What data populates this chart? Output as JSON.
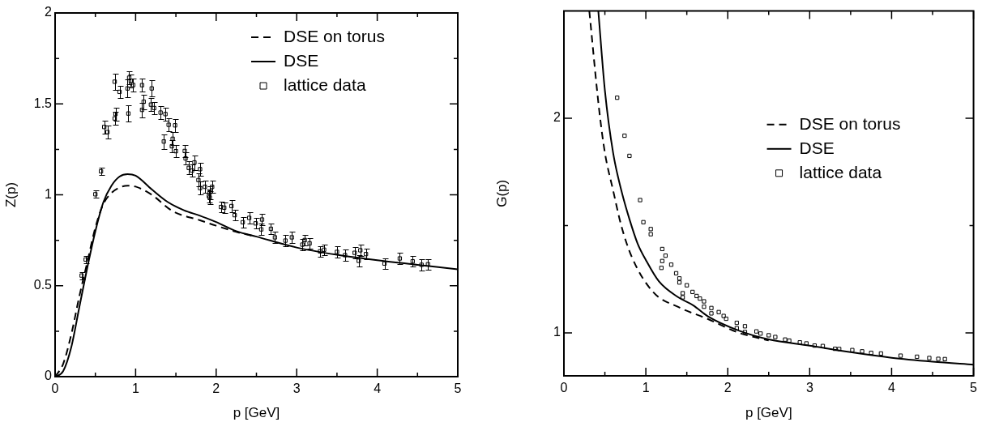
{
  "chart_data": [
    {
      "type": "line",
      "xlabel": "p [GeV]",
      "ylabel": "Z(p)",
      "xlim": [
        0,
        5
      ],
      "ylim": [
        0,
        2
      ],
      "xticks": [
        0,
        {
          "value": 0.5,
          "label": null
        },
        1,
        {
          "value": 1.5,
          "label": null
        },
        2,
        {
          "value": 2.5,
          "label": null
        },
        3,
        {
          "value": 3.5,
          "label": null
        },
        4,
        {
          "value": 4.5,
          "label": null
        },
        5
      ],
      "yticks": [
        0,
        {
          "value": 0.25,
          "label": null
        },
        0.5,
        {
          "value": 0.75,
          "label": null
        },
        1,
        {
          "value": 1.25,
          "label": null
        },
        1.5,
        {
          "value": 1.75,
          "label": null
        },
        2
      ],
      "legend": "top right",
      "grid": false,
      "series": [
        {
          "name": "DSE on torus",
          "color": "#000000",
          "line_style": "dashed",
          "marker": "none",
          "x": [
            0,
            0.1,
            0.2,
            0.3,
            0.4,
            0.5,
            0.6,
            0.7,
            0.8,
            0.9,
            1.0,
            1.2,
            1.46,
            1.8,
            2.0,
            2.3,
            2.5
          ],
          "values": [
            0,
            0.07,
            0.23,
            0.44,
            0.63,
            0.82,
            0.95,
            1.01,
            1.04,
            1.05,
            1.045,
            1.0,
            0.91,
            0.86,
            0.83,
            0.79,
            0.77
          ]
        },
        {
          "name": "DSE",
          "color": "#000000",
          "line_style": "solid",
          "marker": "none",
          "x": [
            0,
            0.1,
            0.2,
            0.3,
            0.4,
            0.5,
            0.6,
            0.7,
            0.8,
            0.9,
            1.0,
            1.2,
            1.4,
            1.6,
            1.8,
            2.0,
            2.25,
            2.5,
            3,
            3.5,
            4,
            4.5,
            5
          ],
          "values": [
            0,
            0.03,
            0.16,
            0.38,
            0.6,
            0.8,
            0.96,
            1.05,
            1.1,
            1.114,
            1.105,
            1.03,
            0.96,
            0.915,
            0.885,
            0.85,
            0.8,
            0.77,
            0.71,
            0.67,
            0.64,
            0.615,
            0.59
          ]
        },
        {
          "name": "lattice data",
          "type": "scatter",
          "color": "#000000",
          "marker": "square",
          "x": [
            0.33,
            0.38,
            0.5,
            0.57,
            0.61,
            0.65,
            0.74,
            0.75,
            0.74,
            0.8,
            0.91,
            0.9,
            0.92,
            0.94,
            0.97,
            1.08,
            1.08,
            1.1,
            1.19,
            1.2,
            1.23,
            1.31,
            1.37,
            1.35,
            1.41,
            1.49,
            1.46,
            1.45,
            1.5,
            1.61,
            1.62,
            1.66,
            1.7,
            1.73,
            1.8,
            1.78,
            1.8,
            1.86,
            1.92,
            1.95,
            1.92,
            1.91,
            2.06,
            2.1,
            2.19,
            2.23,
            2.33,
            2.41,
            2.49,
            2.57,
            2.56,
            2.68,
            2.73,
            2.86,
            2.94,
            3.07,
            3.1,
            3.16,
            3.29,
            3.34,
            3.5,
            3.6,
            3.72,
            3.79,
            3.77,
            3.86,
            4.09,
            4.28,
            4.44,
            4.55,
            4.63
          ],
          "values": [
            0.556,
            0.644,
            1.003,
            1.129,
            1.373,
            1.345,
            1.42,
            1.444,
            1.622,
            1.566,
            1.447,
            1.585,
            1.644,
            1.627,
            1.604,
            1.603,
            1.467,
            1.512,
            1.496,
            1.585,
            1.477,
            1.452,
            1.444,
            1.293,
            1.385,
            1.382,
            1.308,
            1.267,
            1.24,
            1.241,
            1.2,
            1.148,
            1.133,
            1.178,
            1.141,
            1.081,
            1.037,
            1.044,
            1.012,
            1.044,
            0.985,
            0.993,
            0.933,
            0.929,
            0.938,
            0.888,
            0.849,
            0.873,
            0.843,
            0.864,
            0.81,
            0.813,
            0.766,
            0.748,
            0.766,
            0.726,
            0.751,
            0.733,
            0.689,
            0.698,
            0.686,
            0.668,
            0.681,
            0.695,
            0.637,
            0.674,
            0.622,
            0.65,
            0.634,
            0.615,
            0.618
          ],
          "errors": [
            0.02,
            0.02,
            0.02,
            0.02,
            0.035,
            0.035,
            0.035,
            0.035,
            0.045,
            0.035,
            0.045,
            0.05,
            0.035,
            0.035,
            0.035,
            0.035,
            0.04,
            0.04,
            0.035,
            0.045,
            0.035,
            0.035,
            0.035,
            0.04,
            0.035,
            0.035,
            0.035,
            0.035,
            0.035,
            0.035,
            0.035,
            0.035,
            0.035,
            0.04,
            0.035,
            0.035,
            0.035,
            0.035,
            0.035,
            0.035,
            0.035,
            0.035,
            0.03,
            0.03,
            0.035,
            0.03,
            0.03,
            0.03,
            0.03,
            0.03,
            0.03,
            0.03,
            0.03,
            0.03,
            0.03,
            0.03,
            0.03,
            0.03,
            0.03,
            0.03,
            0.03,
            0.03,
            0.03,
            0.03,
            0.03,
            0.03,
            0.03,
            0.03,
            0.03,
            0.03,
            0.03
          ]
        }
      ]
    },
    {
      "type": "line",
      "xlabel": "p [GeV]",
      "ylabel": "G(p)",
      "xlim": [
        0,
        5
      ],
      "ylim": [
        0.8,
        2.5
      ],
      "xticks": [
        0,
        {
          "value": 0.5,
          "label": null
        },
        1,
        {
          "value": 1.5,
          "label": null
        },
        2,
        {
          "value": 2.5,
          "label": null
        },
        3,
        {
          "value": 3.5,
          "label": null
        },
        4,
        {
          "value": 4.5,
          "label": null
        },
        5
      ],
      "yticks": [
        1,
        {
          "value": 1.5,
          "label": null
        },
        2
      ],
      "legend": "right",
      "grid": false,
      "series": [
        {
          "name": "DSE on torus",
          "color": "#000000",
          "line_style": "dashed",
          "marker": "none",
          "x": [
            0.31,
            0.43,
            0.5,
            0.6,
            0.7,
            0.83,
            1.09,
            1.4,
            1.75,
            2.14,
            2.5
          ],
          "values": [
            2.5,
            2.04,
            1.84,
            1.665,
            1.5,
            1.353,
            1.19,
            1.12,
            1.066,
            1.0,
            0.965
          ]
        },
        {
          "name": "DSE",
          "color": "#000000",
          "line_style": "solid",
          "marker": "none",
          "x": [
            0.42,
            0.5,
            0.6,
            0.7,
            0.8,
            0.9,
            1.0,
            1.16,
            1.4,
            1.58,
            1.75,
            2.14,
            2.5,
            3,
            3.5,
            4,
            4.5,
            5
          ],
          "values": [
            2.5,
            2.13,
            1.84,
            1.665,
            1.53,
            1.416,
            1.34,
            1.24,
            1.165,
            1.128,
            1.079,
            1.01,
            0.97,
            0.941,
            0.91,
            0.884,
            0.866,
            0.852
          ]
        },
        {
          "name": "lattice data",
          "type": "scatter",
          "color": "#000000",
          "marker": "square",
          "x": [
            0.65,
            0.74,
            0.8,
            0.93,
            0.97,
            1.06,
            1.06,
            1.2,
            1.24,
            1.2,
            1.19,
            1.31,
            1.37,
            1.41,
            1.41,
            1.5,
            1.45,
            1.45,
            1.57,
            1.62,
            1.66,
            1.71,
            1.71,
            1.8,
            1.8,
            1.89,
            1.95,
            1.98,
            2.11,
            2.11,
            2.21,
            2.21,
            2.35,
            2.4,
            2.5,
            2.58,
            2.7,
            2.75,
            2.88,
            2.96,
            3.06,
            3.16,
            3.31,
            3.36,
            3.52,
            3.64,
            3.75,
            3.87,
            4.11,
            4.31,
            4.46,
            4.57,
            4.65
          ],
          "values": [
            2.096,
            1.919,
            1.825,
            1.619,
            1.516,
            1.484,
            1.46,
            1.391,
            1.36,
            1.335,
            1.303,
            1.318,
            1.278,
            1.254,
            1.235,
            1.222,
            1.185,
            1.166,
            1.191,
            1.172,
            1.16,
            1.147,
            1.122,
            1.116,
            1.091,
            1.097,
            1.079,
            1.066,
            1.047,
            1.022,
            1.031,
            1.004,
            1.007,
            0.997,
            0.989,
            0.981,
            0.969,
            0.964,
            0.956,
            0.951,
            0.941,
            0.939,
            0.926,
            0.925,
            0.92,
            0.914,
            0.907,
            0.904,
            0.894,
            0.889,
            0.883,
            0.879,
            0.878
          ]
        }
      ]
    }
  ]
}
